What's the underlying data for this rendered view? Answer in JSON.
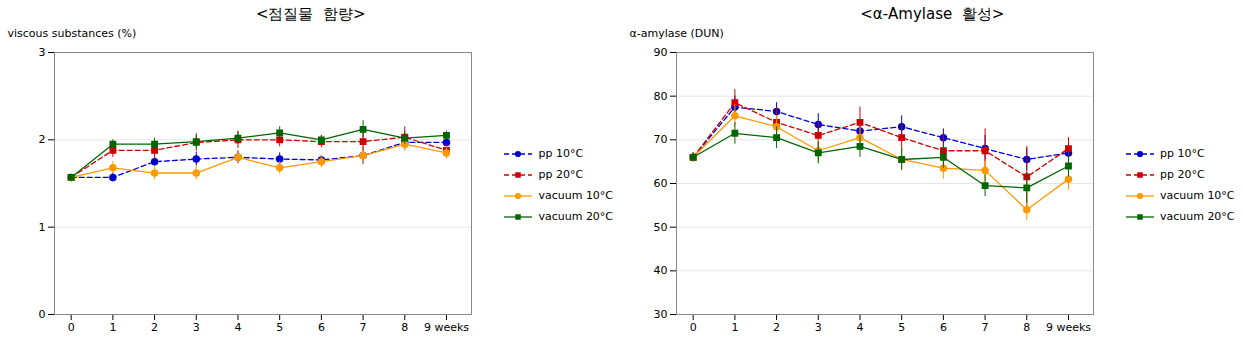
{
  "chart_data": [
    {
      "type": "line",
      "title": "<점질물  함량>",
      "x": [
        0,
        1,
        2,
        3,
        4,
        5,
        6,
        7,
        8,
        9
      ],
      "xlim": [
        -0.4,
        9.6
      ],
      "xticks": [
        0,
        1,
        2,
        3,
        4,
        5,
        6,
        7,
        8,
        {
          "value": 9,
          "label": "9 weeks"
        }
      ],
      "ylabel": "viscous substances (%)",
      "ylim": [
        0,
        3
      ],
      "yticks": [
        0,
        1,
        2,
        3
      ],
      "grid": "y",
      "legend": "right",
      "series": [
        {
          "name": "pp 10°C",
          "color": "#0000cc",
          "line_style": "dashed",
          "marker": "circle",
          "values": [
            1.57,
            1.57,
            1.75,
            1.78,
            1.8,
            1.78,
            1.77,
            1.82,
            1.97,
            1.97
          ],
          "errors": [
            0.02,
            0.05,
            0.05,
            0.08,
            0.07,
            0.07,
            0.05,
            0.1,
            0.08,
            0.05
          ]
        },
        {
          "name": "pp 20°C",
          "color": "#cc0000",
          "line_style": "dashed",
          "marker": "square",
          "values": [
            1.57,
            1.88,
            1.88,
            1.97,
            2.0,
            2.0,
            1.98,
            1.98,
            2.03,
            1.88
          ],
          "errors": [
            0.02,
            0.08,
            0.1,
            0.1,
            0.1,
            0.08,
            0.07,
            0.1,
            0.12,
            0.07
          ]
        },
        {
          "name": "vacuum 10°C",
          "color": "#ff9900",
          "line_style": "solid",
          "marker": "circle",
          "values": [
            1.57,
            1.68,
            1.62,
            1.62,
            1.8,
            1.68,
            1.75,
            1.82,
            1.95,
            1.85
          ],
          "errors": [
            0.02,
            0.07,
            0.08,
            0.08,
            0.08,
            0.07,
            0.07,
            0.1,
            0.08,
            0.07
          ]
        },
        {
          "name": "vacuum 20°C",
          "color": "#006600",
          "line_style": "solid",
          "marker": "square",
          "values": [
            1.57,
            1.95,
            1.95,
            1.98,
            2.02,
            2.08,
            2.0,
            2.12,
            2.02,
            2.05
          ],
          "errors": [
            0.02,
            0.05,
            0.07,
            0.07,
            0.07,
            0.07,
            0.05,
            0.1,
            0.07,
            0.05
          ]
        }
      ]
    },
    {
      "type": "line",
      "title": "<α-Amylase  활성>",
      "x": [
        0,
        1,
        2,
        3,
        4,
        5,
        6,
        7,
        8,
        9
      ],
      "xlim": [
        -0.4,
        9.6
      ],
      "xticks": [
        0,
        1,
        2,
        3,
        4,
        5,
        6,
        7,
        8,
        {
          "value": 9,
          "label": "9 weeks"
        }
      ],
      "ylabel": "α-amylase (DUN)",
      "ylim": [
        30,
        90
      ],
      "yticks": [
        30,
        40,
        50,
        60,
        70,
        80,
        90
      ],
      "grid": "y",
      "legend": "right",
      "series": [
        {
          "name": "pp 10°C",
          "color": "#0000cc",
          "line_style": "dashed",
          "marker": "circle",
          "values": [
            66.0,
            77.5,
            76.5,
            73.5,
            72.0,
            73.0,
            70.5,
            68.0,
            65.5,
            67.0
          ],
          "errors": [
            1.0,
            2.5,
            2.0,
            2.5,
            2.0,
            2.5,
            2.0,
            3.0,
            2.5,
            2.0
          ]
        },
        {
          "name": "pp 20°C",
          "color": "#cc0000",
          "line_style": "dashed",
          "marker": "square",
          "values": [
            66.0,
            78.5,
            74.0,
            71.0,
            74.0,
            70.5,
            67.5,
            67.5,
            61.5,
            68.0
          ],
          "errors": [
            1.0,
            3.0,
            3.5,
            3.0,
            3.5,
            3.0,
            4.0,
            5.0,
            7.0,
            2.5
          ]
        },
        {
          "name": "vacuum 10°C",
          "color": "#ff9900",
          "line_style": "solid",
          "marker": "circle",
          "values": [
            66.0,
            75.5,
            73.0,
            67.5,
            70.5,
            65.5,
            63.5,
            63.0,
            54.0,
            61.0
          ],
          "errors": [
            1.0,
            2.5,
            2.5,
            2.5,
            2.5,
            2.5,
            2.5,
            2.5,
            2.5,
            2.5
          ]
        },
        {
          "name": "vacuum 20°C",
          "color": "#006600",
          "line_style": "solid",
          "marker": "square",
          "values": [
            66.0,
            71.5,
            70.5,
            67.0,
            68.5,
            65.5,
            66.0,
            59.5,
            59.0,
            64.0
          ],
          "errors": [
            1.0,
            2.5,
            2.5,
            2.5,
            2.5,
            2.5,
            2.5,
            2.5,
            3.5,
            2.5
          ]
        }
      ]
    }
  ]
}
